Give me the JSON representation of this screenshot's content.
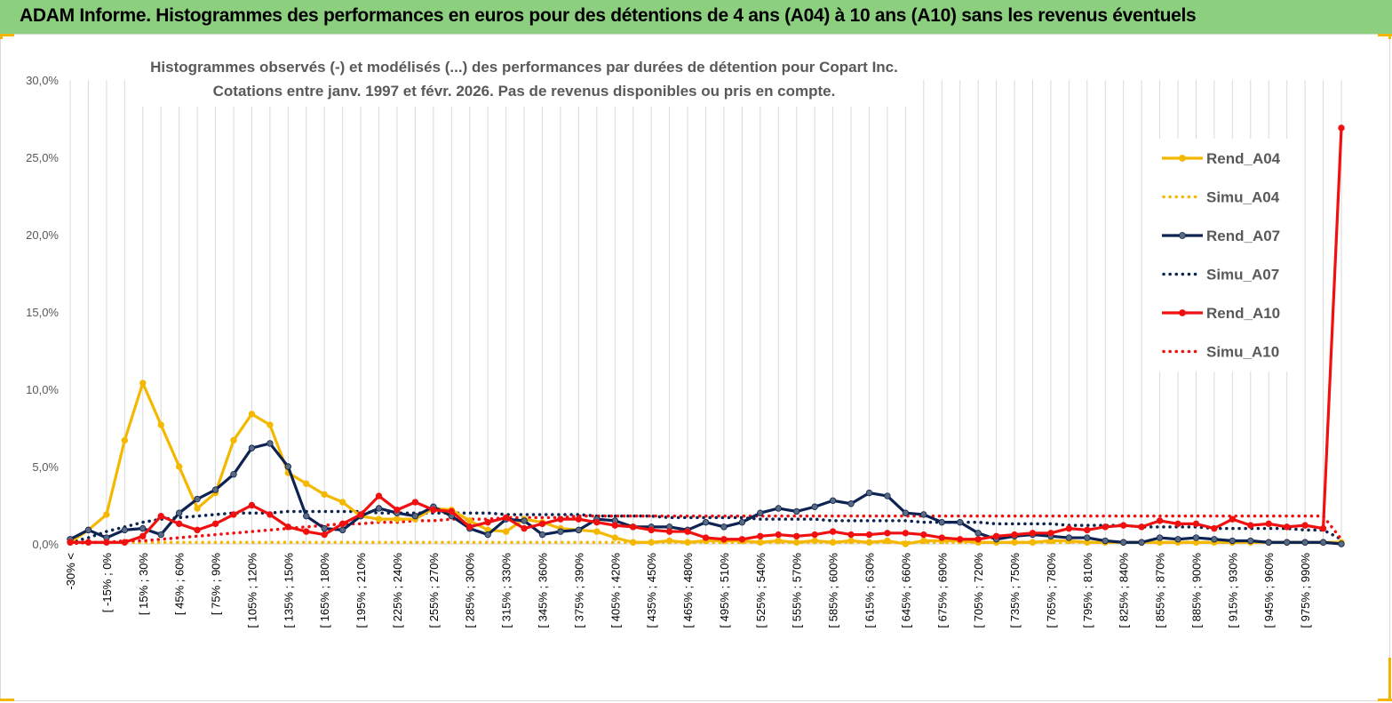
{
  "banner_title": "ADAM Informe. Histogrammes des performances en euros pour des détentions de 4 ans (A04) à 10 ans (A10) sans les revenus éventuels",
  "colors": {
    "banner": "#8ccf7f",
    "A04": "#f5b800",
    "A07": "#0d2352",
    "A10": "#f01010",
    "grid": "#d9d9d9",
    "marker_A07": "#5a6a80"
  },
  "chart_data": {
    "type": "line",
    "title": "Histogrammes observés (-) et modélisés (...) des performances par durées de détention pour Copart Inc.",
    "subtitle": "Cotations entre janv. 1997 et févr. 2026. Pas de revenus disponibles ou pris en compte.",
    "ylim": [
      0,
      30
    ],
    "y_ticks": [
      "0,0%",
      "5,0%",
      "10,0%",
      "15,0%",
      "20,0%",
      "25,0%",
      "30,0%"
    ],
    "y_tick_values": [
      0,
      5,
      10,
      15,
      20,
      25,
      30
    ],
    "x_tick_labels": [
      "-30% <",
      "[ -15% ; 0%",
      "[ 15% ; 30%",
      "[ 45% ; 60%",
      "[ 75% ; 90%",
      "[ 105% ; 120%",
      "[ 135% ; 150%",
      "[ 165% ; 180%",
      "[ 195% ; 210%",
      "[ 225% ; 240%",
      "[ 255% ; 270%",
      "[ 285% ; 300%",
      "[ 315% ; 330%",
      "[ 345% ; 360%",
      "[ 375% ; 390%",
      "[ 405% ; 420%",
      "[ 435% ; 450%",
      "[ 465% ; 480%",
      "[ 495% ; 510%",
      "[ 525% ; 540%",
      "[ 555% ; 570%",
      "[ 585% ; 600%",
      "[ 615% ; 630%",
      "[ 645% ; 660%",
      "[ 675% ; 690%",
      "[ 705% ; 720%",
      "[ 735% ; 750%",
      "[ 765% ; 780%",
      "[ 795% ; 810%",
      "[ 825% ; 840%",
      "[ 855% ; 870%",
      "[ 885% ; 900%",
      "[ 915% ; 930%",
      "[ 945% ; 960%",
      "[ 975% ; 990%"
    ],
    "grid": "vertical",
    "legend_position": "right",
    "series": [
      {
        "name": "Rend_A04",
        "style": "solid",
        "color_key": "A04",
        "values": [
          0.1,
          0.9,
          1.9,
          6.7,
          10.4,
          7.7,
          5.0,
          2.3,
          3.3,
          6.7,
          8.4,
          7.7,
          4.6,
          3.9,
          3.2,
          2.7,
          1.8,
          1.6,
          1.6,
          1.6,
          2.3,
          2.2,
          1.5,
          0.9,
          0.8,
          1.6,
          1.4,
          1.0,
          0.9,
          0.8,
          0.4,
          0.1,
          0.1,
          0.2,
          0.1,
          0.2,
          0.2,
          0.2,
          0.1,
          0.2,
          0.1,
          0.2,
          0.1,
          0.2,
          0.1,
          0.2,
          0.0,
          0.2,
          0.2,
          0.2,
          0.1,
          0.1,
          0.1,
          0.1,
          0.2,
          0.2,
          0.1,
          0.1,
          0.1,
          0.1,
          0.1,
          0.1,
          0.1,
          0.1,
          0.1,
          0.1,
          0.1,
          0.1,
          0.1,
          0.1,
          0.1
        ]
      },
      {
        "name": "Simu_A04",
        "style": "dotted",
        "color_key": "A04",
        "values": [
          0.1,
          0.1,
          0.1,
          0.1,
          0.1,
          0.1,
          0.1,
          0.1,
          0.1,
          0.1,
          0.1,
          0.1,
          0.1,
          0.1,
          0.1,
          0.1,
          0.1,
          0.1,
          0.1,
          0.1,
          0.1,
          0.1,
          0.1,
          0.1,
          0.1,
          0.1,
          0.1,
          0.1,
          0.1,
          0.1,
          0.1,
          0.1,
          0.1,
          0.1,
          0.1,
          0.1,
          0.1,
          0.1,
          0.1,
          0.1,
          0.1,
          0.1,
          0.1,
          0.1,
          0.1,
          0.1,
          0.1,
          0.1,
          0.1,
          0.1,
          0.1,
          0.1,
          0.1,
          0.1,
          0.1,
          0.1,
          0.1,
          0.1,
          0.1,
          0.1,
          0.1,
          0.1,
          0.1,
          0.1,
          0.1,
          0.1,
          0.1,
          0.1,
          0.1,
          0.1,
          0.1
        ]
      },
      {
        "name": "Rend_A07",
        "style": "solid",
        "color_key": "A07",
        "values": [
          0.3,
          0.9,
          0.4,
          0.9,
          1.0,
          0.6,
          2.0,
          2.9,
          3.5,
          4.5,
          6.2,
          6.5,
          5.0,
          1.8,
          1.0,
          0.9,
          1.8,
          2.3,
          2.0,
          1.8,
          2.4,
          1.8,
          1.0,
          0.6,
          1.6,
          1.5,
          0.6,
          0.8,
          0.9,
          1.6,
          1.5,
          1.1,
          1.1,
          1.1,
          0.9,
          1.4,
          1.1,
          1.4,
          2.0,
          2.3,
          2.1,
          2.4,
          2.8,
          2.6,
          3.3,
          3.1,
          2.0,
          1.9,
          1.4,
          1.4,
          0.7,
          0.3,
          0.5,
          0.6,
          0.5,
          0.4,
          0.4,
          0.2,
          0.1,
          0.1,
          0.4,
          0.3,
          0.4,
          0.3,
          0.2,
          0.2,
          0.1,
          0.1,
          0.1,
          0.1,
          0.0
        ]
      },
      {
        "name": "Simu_A07",
        "style": "dotted",
        "color_key": "A07",
        "values": [
          0.1,
          0.4,
          0.8,
          1.1,
          1.4,
          1.6,
          1.7,
          1.8,
          1.9,
          2.0,
          2.0,
          2.0,
          2.1,
          2.1,
          2.1,
          2.1,
          2.1,
          2.0,
          2.0,
          2.0,
          2.0,
          2.0,
          2.0,
          2.0,
          1.9,
          1.9,
          1.9,
          1.9,
          1.9,
          1.8,
          1.8,
          1.8,
          1.8,
          1.7,
          1.7,
          1.7,
          1.7,
          1.7,
          1.6,
          1.6,
          1.6,
          1.6,
          1.5,
          1.5,
          1.5,
          1.5,
          1.5,
          1.4,
          1.4,
          1.4,
          1.4,
          1.3,
          1.3,
          1.3,
          1.3,
          1.2,
          1.2,
          1.2,
          1.2,
          1.1,
          1.1,
          1.1,
          1.1,
          1.0,
          1.0,
          1.0,
          1.0,
          1.0,
          0.9,
          0.9,
          0.3
        ]
      },
      {
        "name": "Rend_A10",
        "style": "solid",
        "color_key": "A10",
        "values": [
          0.1,
          0.1,
          0.1,
          0.1,
          0.5,
          1.8,
          1.3,
          0.9,
          1.3,
          1.9,
          2.5,
          1.9,
          1.1,
          0.8,
          0.6,
          1.3,
          1.9,
          3.1,
          2.2,
          2.7,
          2.2,
          2.1,
          1.1,
          1.4,
          1.7,
          1.0,
          1.3,
          1.6,
          1.6,
          1.4,
          1.2,
          1.1,
          0.9,
          0.8,
          0.8,
          0.4,
          0.3,
          0.3,
          0.5,
          0.6,
          0.5,
          0.6,
          0.8,
          0.6,
          0.6,
          0.7,
          0.7,
          0.6,
          0.4,
          0.3,
          0.3,
          0.5,
          0.6,
          0.7,
          0.7,
          1.0,
          0.9,
          1.1,
          1.2,
          1.1,
          1.5,
          1.3,
          1.3,
          1.0,
          1.6,
          1.2,
          1.3,
          1.1,
          1.2,
          1.0,
          26.9
        ]
      },
      {
        "name": "Simu_A10",
        "style": "dotted",
        "color_key": "A10",
        "values": [
          0.0,
          0.1,
          0.1,
          0.2,
          0.2,
          0.3,
          0.4,
          0.5,
          0.6,
          0.7,
          0.8,
          0.9,
          1.0,
          1.1,
          1.2,
          1.3,
          1.3,
          1.4,
          1.4,
          1.5,
          1.5,
          1.6,
          1.6,
          1.6,
          1.7,
          1.7,
          1.7,
          1.7,
          1.8,
          1.8,
          1.8,
          1.8,
          1.8,
          1.8,
          1.8,
          1.8,
          1.8,
          1.8,
          1.8,
          1.8,
          1.8,
          1.8,
          1.8,
          1.8,
          1.8,
          1.8,
          1.8,
          1.8,
          1.8,
          1.8,
          1.8,
          1.8,
          1.8,
          1.8,
          1.8,
          1.8,
          1.8,
          1.8,
          1.8,
          1.8,
          1.8,
          1.8,
          1.8,
          1.8,
          1.8,
          1.8,
          1.8,
          1.8,
          1.8,
          1.8,
          0.3
        ]
      }
    ]
  }
}
